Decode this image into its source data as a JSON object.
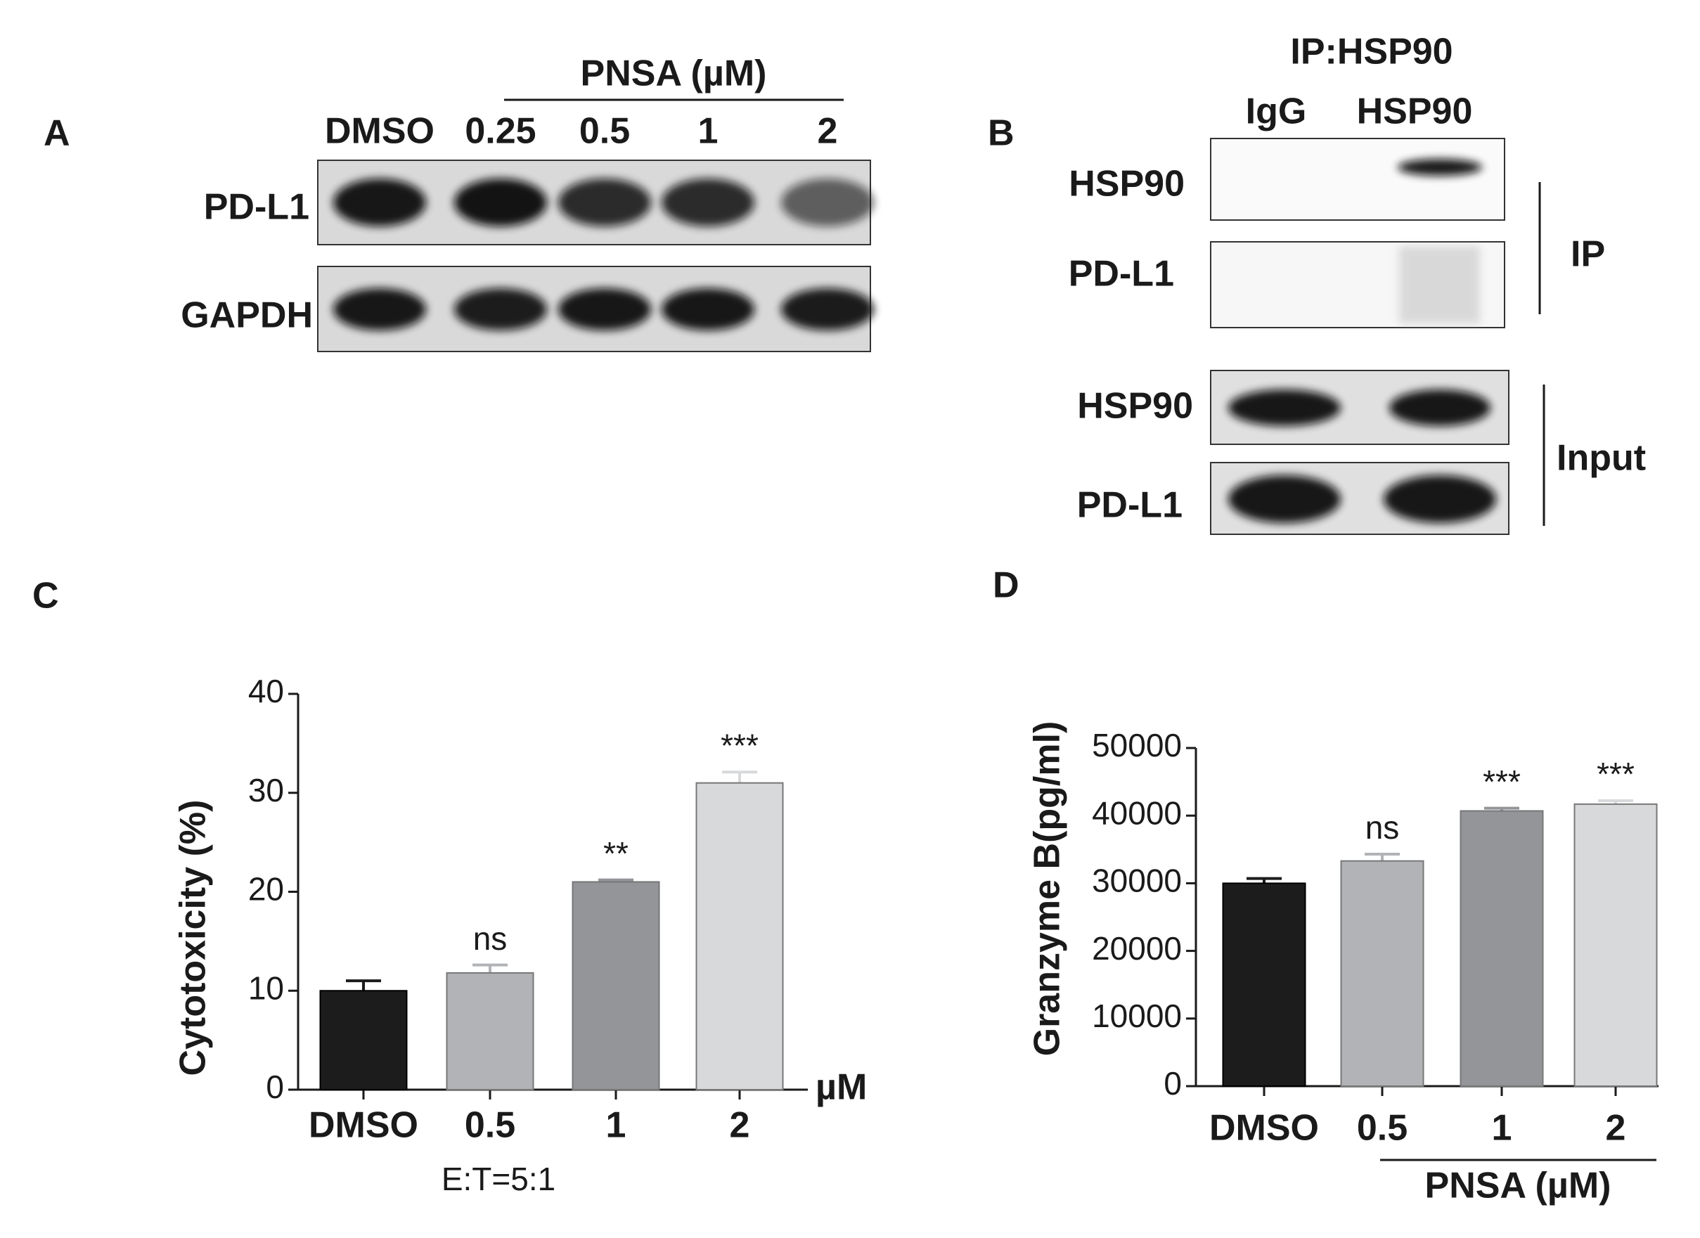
{
  "panels": [
    "A",
    "B",
    "C",
    "D"
  ],
  "blot_a": {
    "header": "PNSA (µM)",
    "lanes": [
      "DMSO",
      "0.25",
      "0.5",
      "1",
      "2"
    ],
    "rows": [
      "PD-L1",
      "GAPDH"
    ]
  },
  "blot_b": {
    "title": "IP:HSP90",
    "lanes": [
      "IgG",
      "HSP90"
    ],
    "rows": [
      "HSP90",
      "PD-L1",
      "HSP90",
      "PD-L1"
    ],
    "groups": [
      "IP",
      "Input"
    ]
  },
  "chart_data": [
    {
      "type": "bar",
      "ylabel": "Cytotoxicity (%)",
      "xlabel": "E:T=5:1",
      "unit": "µM",
      "categories": [
        "DMSO",
        "0.5",
        "1",
        "2"
      ],
      "values": [
        10,
        11.8,
        21,
        31
      ],
      "errors": [
        1,
        0.8,
        0.2,
        1.1
      ],
      "bar_labels": [
        null,
        "ns",
        "**",
        "***"
      ],
      "colors": [
        "#1c1c1c",
        "#b1b3b6",
        "#939598",
        "#d8d9db"
      ],
      "ylim": [
        0,
        40
      ],
      "yticks": [
        0,
        10,
        20,
        30,
        40
      ]
    },
    {
      "type": "bar",
      "ylabel": "Granzyme B(pg/ml)",
      "xlabel": "PNSA (µM)",
      "categories": [
        "DMSO",
        "0.5",
        "1",
        "2"
      ],
      "values": [
        30000,
        33300,
        40700,
        41700
      ],
      "errors": [
        700,
        1000,
        400,
        500
      ],
      "bar_labels": [
        null,
        "ns",
        "***",
        "***"
      ],
      "colors": [
        "#1c1c1c",
        "#b1b3b6",
        "#939598",
        "#d8d9db"
      ],
      "ylim": [
        0,
        50000
      ],
      "yticks": [
        0,
        10000,
        20000,
        30000,
        40000,
        50000
      ]
    }
  ]
}
